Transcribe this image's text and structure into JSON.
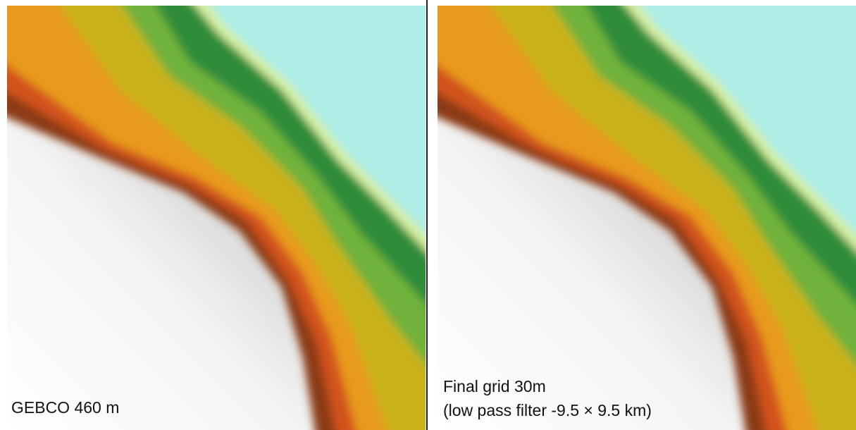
{
  "panels": [
    {
      "label_lines": [
        "GEBCO 460 m"
      ]
    },
    {
      "label_lines": [
        "Final grid 30m",
        "(low pass filter -9.5 × 9.5 km)"
      ]
    }
  ]
}
